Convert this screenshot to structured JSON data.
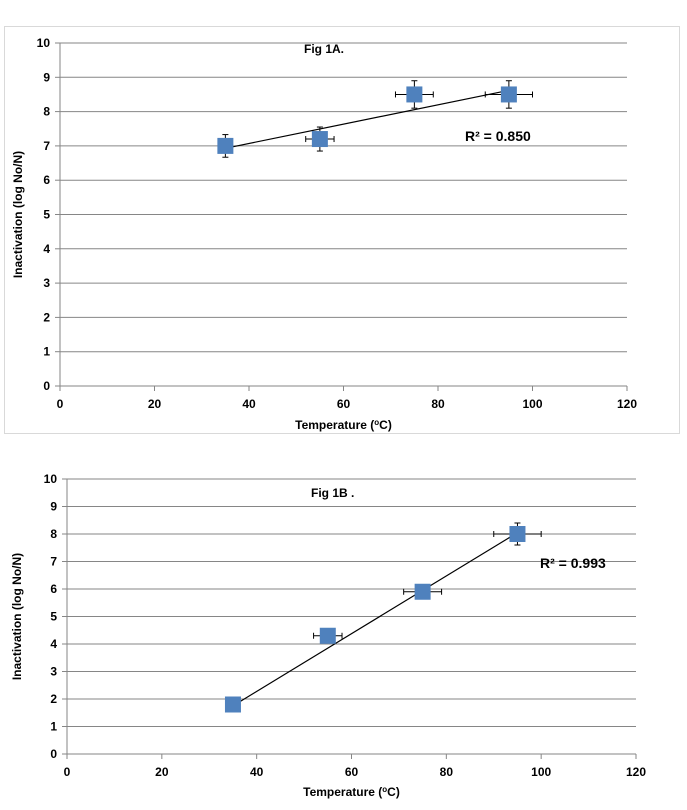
{
  "chart_data": [
    {
      "type": "scatter",
      "title": "Fig 1A.",
      "xlabel": "Temperature (",
      "xlabel_sup": "o",
      "xlabel_suffix": "C)",
      "ylabel": "Inactivation (log No/N)",
      "xlim": [
        0,
        120
      ],
      "ylim": [
        0,
        10
      ],
      "x_ticks": [
        0,
        20,
        40,
        60,
        80,
        100,
        120
      ],
      "y_ticks": [
        0,
        1,
        2,
        3,
        4,
        5,
        6,
        7,
        8,
        9,
        10
      ],
      "grid": "horizontal",
      "marker": "square",
      "marker_color": "#4f81bd",
      "x": [
        35,
        55,
        75,
        95
      ],
      "y": [
        7.0,
        7.2,
        8.5,
        8.5
      ],
      "y_error": [
        0.33,
        0.35,
        0.4,
        0.4
      ],
      "x_error": [
        0,
        3,
        4,
        5
      ],
      "trendline": {
        "x": [
          35,
          95
        ],
        "y": [
          6.93,
          8.62
        ]
      },
      "annotation": "R² = 0.850"
    },
    {
      "type": "scatter",
      "title": "Fig 1B .",
      "xlabel": "Temperature (",
      "xlabel_sup": "o",
      "xlabel_suffix": "C)",
      "ylabel": "Inactivation (log No/N)",
      "xlim": [
        0,
        120
      ],
      "ylim": [
        0,
        10
      ],
      "x_ticks": [
        0,
        20,
        40,
        60,
        80,
        100,
        120
      ],
      "y_ticks": [
        0,
        1,
        2,
        3,
        4,
        5,
        6,
        7,
        8,
        9,
        10
      ],
      "grid": "horizontal",
      "marker": "square",
      "marker_color": "#4f81bd",
      "x": [
        35,
        55,
        75,
        95
      ],
      "y": [
        1.8,
        4.3,
        5.9,
        8.0
      ],
      "y_error": [
        0.1,
        0.1,
        0.25,
        0.4
      ],
      "x_error": [
        0,
        3,
        4,
        5
      ],
      "trendline": {
        "x": [
          35,
          95
        ],
        "y": [
          1.75,
          8.05
        ]
      },
      "annotation": "R² = 0.993"
    }
  ]
}
